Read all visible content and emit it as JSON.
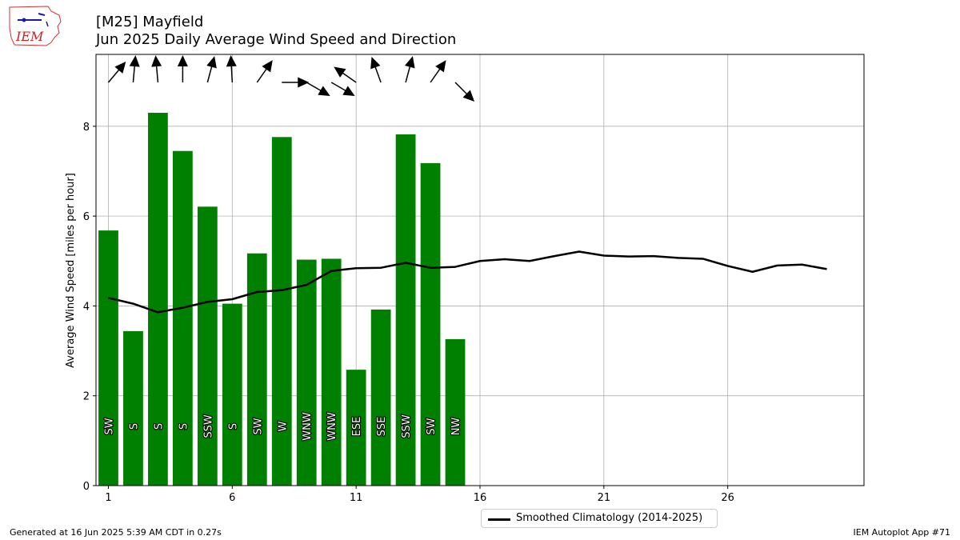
{
  "logo": {
    "text": "IEM"
  },
  "title": {
    "line1": "[M25] Mayfield",
    "line2": "Jun 2025 Daily Average Wind Speed and Direction"
  },
  "footer": {
    "left": "Generated at 16 Jun 2025 5:39 AM CDT in 0.27s",
    "right": "IEM Autoplot App #71"
  },
  "colors": {
    "bar": "#008000",
    "climatology": "#000000",
    "grid": "#b0b0b0"
  },
  "chart_data": {
    "type": "bar",
    "ylabel": "Average Wind Speed [miles per hour]",
    "xlabel": "",
    "xlim": [
      0.5,
      31.5
    ],
    "ylim": [
      0,
      9.6
    ],
    "xticks": [
      1,
      6,
      11,
      16,
      21,
      26
    ],
    "yticks": [
      0,
      2,
      4,
      6,
      8
    ],
    "grid": true,
    "legend_placement": "bottom-center",
    "bars": {
      "days": [
        1,
        2,
        3,
        4,
        5,
        6,
        7,
        8,
        9,
        10,
        11,
        12,
        13,
        14,
        15
      ],
      "values": [
        5.68,
        3.44,
        8.3,
        7.45,
        6.21,
        4.05,
        5.17,
        7.76,
        5.03,
        5.05,
        2.58,
        3.92,
        7.82,
        7.18,
        3.26
      ],
      "direction_labels": [
        "SW",
        "S",
        "S",
        "S",
        "SSW",
        "S",
        "SW",
        "W",
        "WNW",
        "WNW",
        "ESE",
        "SSE",
        "SSW",
        "SW",
        "NW"
      ],
      "direction_degrees": [
        220,
        185,
        175,
        180,
        195,
        177,
        215,
        270,
        300,
        300,
        125,
        160,
        195,
        215,
        315
      ]
    },
    "series": [
      {
        "name": "Smoothed Climatology (2014-2025)",
        "type": "line",
        "x": [
          1,
          2,
          3,
          4,
          5,
          6,
          7,
          8,
          9,
          10,
          11,
          12,
          13,
          14,
          15,
          16,
          17,
          18,
          19,
          20,
          21,
          22,
          23,
          24,
          25,
          26,
          27,
          28,
          29,
          30
        ],
        "values": [
          4.18,
          4.05,
          3.86,
          3.96,
          4.09,
          4.15,
          4.31,
          4.35,
          4.47,
          4.78,
          4.84,
          4.85,
          4.96,
          4.85,
          4.87,
          5.0,
          5.04,
          5.0,
          5.11,
          5.21,
          5.12,
          5.1,
          5.11,
          5.07,
          5.05,
          4.89,
          4.76,
          4.9,
          4.92,
          4.82
        ]
      }
    ]
  }
}
